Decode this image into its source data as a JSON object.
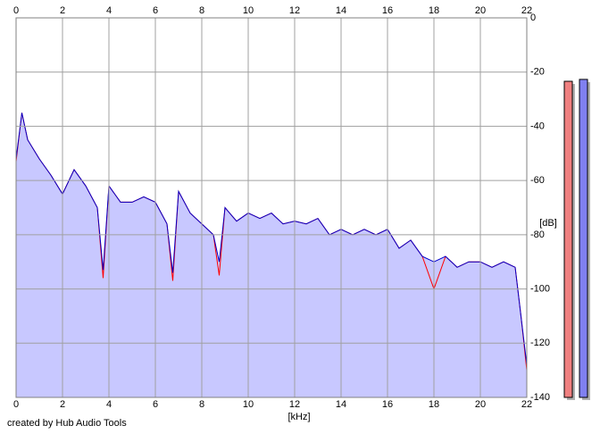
{
  "chart_data": {
    "type": "area",
    "x_label": "[kHz]",
    "y_label": "[dB]",
    "footer": "created by Hub Audio Tools",
    "x": [
      0,
      0.25,
      0.5,
      1,
      1.5,
      2,
      2.5,
      3,
      3.5,
      3.75,
      4,
      4.5,
      5,
      5.5,
      6,
      6.5,
      6.75,
      7,
      7.5,
      8,
      8.5,
      8.75,
      9,
      9.5,
      10,
      10.5,
      11,
      11.5,
      12,
      12.5,
      13,
      13.5,
      14,
      14.5,
      15,
      15.5,
      16,
      16.5,
      17,
      17.5,
      18,
      18.5,
      19,
      19.5,
      20,
      20.5,
      21,
      21.5,
      21.75,
      22
    ],
    "series": [
      {
        "color": "#ff0000",
        "values": [
          -53,
          -35,
          -45,
          -52,
          -58,
          -65,
          -56,
          -62,
          -70,
          -96,
          -62,
          -68,
          -68,
          -66,
          -68,
          -76,
          -97,
          -64,
          -72,
          -76,
          -80,
          -95,
          -70,
          -75,
          -72,
          -74,
          -72,
          -76,
          -75,
          -76,
          -74,
          -80,
          -78,
          -80,
          -78,
          -80,
          -78,
          -85,
          -82,
          -88,
          -100,
          -88,
          -92,
          -90,
          -90,
          -92,
          -90,
          -92,
          -110,
          -130
        ]
      },
      {
        "color": "#0000cc",
        "fill": "#c8c8ff",
        "values": [
          -52,
          -35,
          -45,
          -52,
          -58,
          -65,
          -56,
          -62,
          -70,
          -93,
          -62,
          -68,
          -68,
          -66,
          -68,
          -76,
          -94,
          -64,
          -72,
          -76,
          -80,
          -90,
          -70,
          -75,
          -72,
          -74,
          -72,
          -76,
          -75,
          -76,
          -74,
          -80,
          -78,
          -80,
          -78,
          -80,
          -78,
          -85,
          -82,
          -88,
          -90,
          -88,
          -92,
          -90,
          -90,
          -92,
          -90,
          -92,
          -110,
          -128
        ]
      }
    ],
    "xlim": [
      0,
      22
    ],
    "xticks": [
      0,
      2,
      4,
      6,
      8,
      10,
      12,
      14,
      16,
      18,
      20,
      22
    ],
    "ylim": [
      -140,
      0
    ],
    "yticks": [
      0,
      -20,
      -40,
      -60,
      -80,
      -100,
      -120,
      -140
    ],
    "grid": true,
    "meters": [
      {
        "color": "#f08080",
        "value": -23.4
      },
      {
        "color": "#8080f0",
        "value": -22.7
      }
    ]
  }
}
